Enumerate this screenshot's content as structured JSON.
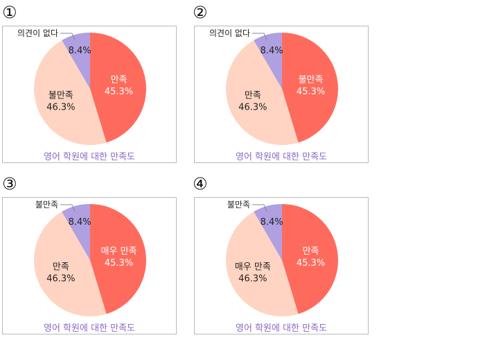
{
  "colors": {
    "red": "#fe6b5d",
    "peach": "#ffd4c2",
    "purple": "#b09fe1",
    "caption": "#8b67c9",
    "border": "#b9b9b9"
  },
  "chart_data": [
    {
      "type": "pie",
      "number": "①",
      "title": "영어 학원에 대한 만족도",
      "slices": [
        {
          "label": "만족",
          "value": 45.3,
          "display": "45.3%",
          "color": "#fe6b5d"
        },
        {
          "label": "불만족",
          "value": 46.3,
          "display": "46.3%",
          "color": "#ffd4c2"
        },
        {
          "label": "의견이 없다",
          "value": 8.4,
          "display": "8.4%",
          "color": "#b09fe1"
        }
      ]
    },
    {
      "type": "pie",
      "number": "②",
      "title": "영어 학원에 대한 만족도",
      "slices": [
        {
          "label": "불만족",
          "value": 45.3,
          "display": "45.3%",
          "color": "#fe6b5d"
        },
        {
          "label": "만족",
          "value": 46.3,
          "display": "46.3%",
          "color": "#ffd4c2"
        },
        {
          "label": "의견이 없다",
          "value": 8.4,
          "display": "8.4%",
          "color": "#b09fe1"
        }
      ]
    },
    {
      "type": "pie",
      "number": "③",
      "title": "영어 학원에 대한 만족도",
      "slices": [
        {
          "label": "매우 만족",
          "value": 45.3,
          "display": "45.3%",
          "color": "#fe6b5d"
        },
        {
          "label": "만족",
          "value": 46.3,
          "display": "46.3%",
          "color": "#ffd4c2"
        },
        {
          "label": "불만족",
          "value": 8.4,
          "display": "8.4%",
          "color": "#b09fe1"
        }
      ]
    },
    {
      "type": "pie",
      "number": "④",
      "title": "영어 학원에 대한 만족도",
      "slices": [
        {
          "label": "만족",
          "value": 45.3,
          "display": "45.3%",
          "color": "#fe6b5d"
        },
        {
          "label": "매우 만족",
          "value": 46.3,
          "display": "46.3%",
          "color": "#ffd4c2"
        },
        {
          "label": "불만족",
          "value": 8.4,
          "display": "8.4%",
          "color": "#b09fe1"
        }
      ]
    }
  ]
}
